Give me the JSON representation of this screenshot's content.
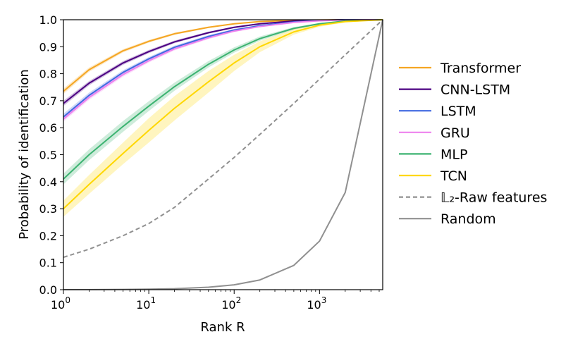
{
  "chart_data": {
    "type": "line",
    "xscale": "log",
    "xlabel": "Rank R",
    "ylabel": "Probability of identification",
    "xlim": [
      1,
      5500
    ],
    "ylim": [
      0,
      1
    ],
    "xticks": [
      {
        "value": 1,
        "base": "10",
        "exp": "0"
      },
      {
        "value": 10,
        "base": "10",
        "exp": "1"
      },
      {
        "value": 100,
        "base": "10",
        "exp": "2"
      },
      {
        "value": 1000,
        "base": "10",
        "exp": "3"
      }
    ],
    "yticks": [
      "0.0",
      "0.1",
      "0.2",
      "0.3",
      "0.4",
      "0.5",
      "0.6",
      "0.7",
      "0.8",
      "0.9",
      "1.0"
    ],
    "legend_position": "right",
    "x": [
      1,
      2,
      5,
      10,
      20,
      50,
      100,
      200,
      500,
      1000,
      2000,
      5500
    ],
    "series": [
      {
        "name": "Transformer",
        "color": "#f5a623",
        "style": "solid",
        "values": [
          0.735,
          0.815,
          0.885,
          0.92,
          0.948,
          0.972,
          0.985,
          0.993,
          0.998,
          0.999,
          1.0,
          1.0
        ],
        "band": [
          0.01,
          0.008,
          0.006,
          0.005,
          0.004,
          0.003,
          0.002,
          0.001,
          0.001,
          0.0,
          0.0,
          0.0
        ]
      },
      {
        "name": "CNN-LSTM",
        "color": "#4b0082",
        "style": "solid",
        "values": [
          0.69,
          0.765,
          0.84,
          0.882,
          0.918,
          0.952,
          0.972,
          0.985,
          0.995,
          0.998,
          1.0,
          1.0
        ],
        "band": [
          0.01,
          0.008,
          0.007,
          0.006,
          0.005,
          0.004,
          0.003,
          0.002,
          0.001,
          0.0,
          0.0,
          0.0
        ]
      },
      {
        "name": "LSTM",
        "color": "#4169e1",
        "style": "solid",
        "values": [
          0.64,
          0.72,
          0.805,
          0.855,
          0.898,
          0.938,
          0.962,
          0.978,
          0.992,
          0.997,
          1.0,
          1.0
        ],
        "band": [
          0.012,
          0.01,
          0.008,
          0.007,
          0.006,
          0.005,
          0.004,
          0.003,
          0.002,
          0.001,
          0.0,
          0.0
        ]
      },
      {
        "name": "GRU",
        "color": "#ee82ee",
        "style": "solid",
        "values": [
          0.632,
          0.712,
          0.797,
          0.848,
          0.892,
          0.933,
          0.958,
          0.975,
          0.99,
          0.996,
          0.999,
          1.0
        ],
        "band": [
          0.01,
          0.009,
          0.008,
          0.007,
          0.006,
          0.005,
          0.004,
          0.003,
          0.002,
          0.001,
          0.0,
          0.0
        ]
      },
      {
        "name": "MLP",
        "color": "#3cb371",
        "style": "solid",
        "values": [
          0.41,
          0.5,
          0.605,
          0.68,
          0.752,
          0.835,
          0.888,
          0.93,
          0.968,
          0.985,
          0.995,
          1.0
        ],
        "band": [
          0.02,
          0.02,
          0.02,
          0.018,
          0.015,
          0.012,
          0.01,
          0.008,
          0.005,
          0.003,
          0.002,
          0.0
        ]
      },
      {
        "name": "TCN",
        "color": "#ffd700",
        "style": "solid",
        "values": [
          0.3,
          0.39,
          0.505,
          0.59,
          0.672,
          0.77,
          0.84,
          0.9,
          0.955,
          0.98,
          0.993,
          1.0
        ],
        "band": [
          0.03,
          0.035,
          0.04,
          0.045,
          0.045,
          0.04,
          0.03,
          0.02,
          0.01,
          0.006,
          0.003,
          0.0
        ]
      },
      {
        "name": "𝕃₂-Raw features",
        "color": "#909090",
        "style": "dashed",
        "values": [
          0.12,
          0.15,
          0.2,
          0.245,
          0.305,
          0.41,
          0.49,
          0.575,
          0.69,
          0.78,
          0.87,
          1.0
        ],
        "band": [
          0,
          0,
          0,
          0,
          0,
          0,
          0,
          0,
          0,
          0,
          0,
          0
        ]
      },
      {
        "name": "Random",
        "color": "#909090",
        "style": "solid",
        "values": [
          0.0002,
          0.0004,
          0.0009,
          0.0018,
          0.0036,
          0.009,
          0.018,
          0.036,
          0.09,
          0.18,
          0.36,
          1.0
        ],
        "band": [
          0,
          0,
          0,
          0,
          0,
          0,
          0,
          0,
          0,
          0,
          0,
          0
        ]
      }
    ]
  }
}
